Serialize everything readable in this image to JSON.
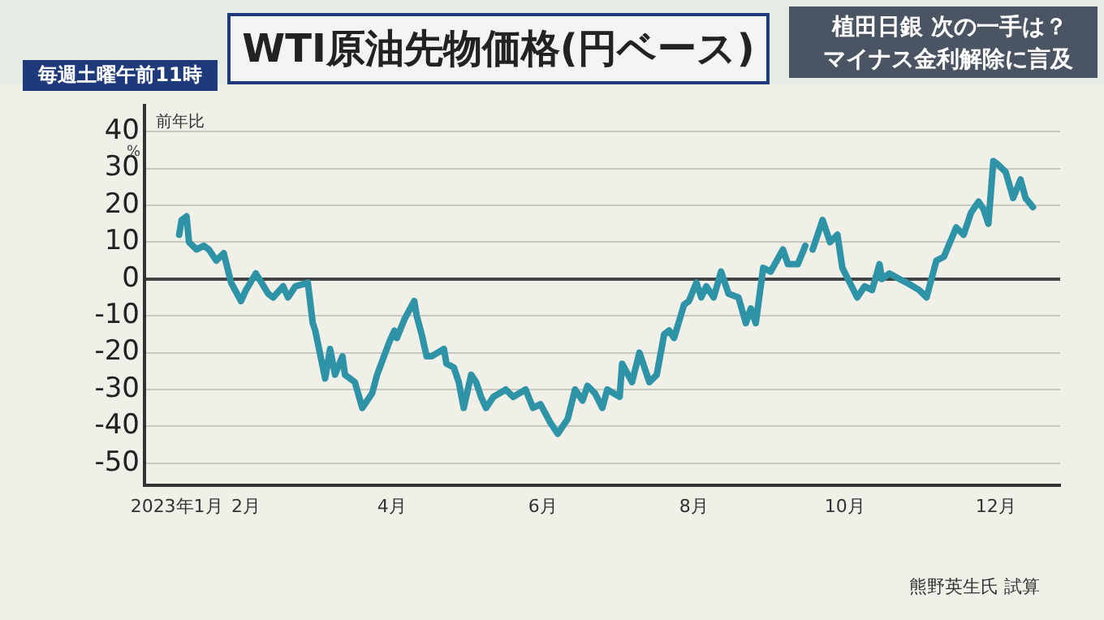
{
  "chart_data": {
    "type": "line",
    "title": "WTI原油先物価格(円ベース)",
    "ylabel": "前年比",
    "annotations": [
      "毎週土曜午前11時",
      "植田日銀 次の一手は？",
      "マイナス金利解除に言及",
      "%",
      "熊野英生氏 試算"
    ],
    "x": [
      "2023-01-05",
      "2023-01-06",
      "2023-01-08",
      "2023-01-09",
      "2023-01-12",
      "2023-01-15",
      "2023-01-17",
      "2023-01-20",
      "2023-01-23",
      "2023-01-26",
      "2023-01-30",
      "2023-02-01",
      "2023-02-05",
      "2023-02-10",
      "2023-02-12",
      "2023-02-16",
      "2023-02-18",
      "2023-02-21",
      "2023-02-26",
      "2023-02-28",
      "2023-03-01",
      "2023-03-05",
      "2023-03-07",
      "2023-03-09",
      "2023-03-12",
      "2023-03-13",
      "2023-03-17",
      "2023-03-20",
      "2023-03-24",
      "2023-03-26",
      "2023-03-31",
      "2023-04-02",
      "2023-04-03",
      "2023-04-06",
      "2023-04-10",
      "2023-04-11",
      "2023-04-13",
      "2023-04-15",
      "2023-04-17",
      "2023-04-22",
      "2023-04-23",
      "2023-04-26",
      "2023-04-28",
      "2023-04-30",
      "2023-05-03",
      "2023-05-05",
      "2023-05-07",
      "2023-05-09",
      "2023-05-12",
      "2023-05-17",
      "2023-05-20",
      "2023-05-25",
      "2023-05-28",
      "2023-05-31",
      "2023-06-04",
      "2023-06-07",
      "2023-06-11",
      "2023-06-14",
      "2023-06-17",
      "2023-06-19",
      "2023-06-22",
      "2023-06-25",
      "2023-06-27",
      "2023-07-02",
      "2023-07-03",
      "2023-07-07",
      "2023-07-10",
      "2023-07-14",
      "2023-07-17",
      "2023-07-20",
      "2023-07-22",
      "2023-07-24",
      "2023-07-28",
      "2023-07-30",
      "2023-08-02",
      "2023-08-04",
      "2023-08-06",
      "2023-08-09",
      "2023-08-12",
      "2023-08-15",
      "2023-08-19",
      "2023-08-22",
      "2023-08-24",
      "2023-08-26",
      "2023-08-29",
      "2023-09-01",
      "2023-09-06",
      "2023-09-08",
      "2023-09-12",
      "2023-09-15",
      "2023-09-17",
      "2023-09-18",
      "2023-09-22",
      "2023-09-25",
      "2023-09-28",
      "2023-09-30",
      "2023-10-06",
      "2023-10-09",
      "2023-10-12",
      "2023-10-15",
      "2023-10-16",
      "2023-10-19",
      "2023-10-23",
      "2023-10-26",
      "2023-10-31",
      "2023-11-03",
      "2023-11-07",
      "2023-11-10",
      "2023-11-15",
      "2023-11-18",
      "2023-11-21",
      "2023-11-24",
      "2023-11-26",
      "2023-11-28",
      "2023-11-30",
      "2023-12-02",
      "2023-12-05",
      "2023-12-08",
      "2023-12-11",
      "2023-12-13",
      "2023-12-16"
    ],
    "series": [
      {
        "color": "#2e93a6",
        "values": [
          12,
          16,
          17,
          10,
          8,
          9,
          8,
          5,
          7,
          -1,
          -6,
          -3,
          1.5,
          -4,
          -5,
          -2,
          -5,
          -2,
          -1,
          -12,
          -14,
          -27,
          -19,
          -26,
          -21,
          -26,
          -28,
          -35,
          -31,
          -26,
          -17,
          -14,
          -16,
          -11,
          -6,
          -10,
          -15,
          -21,
          -21,
          -19,
          -23,
          -24,
          -28,
          -35,
          -26,
          -28,
          -32,
          -35,
          -32,
          -30,
          -32,
          -30,
          -35,
          -34,
          -39,
          -42,
          -38,
          -30,
          -33,
          -29,
          -31,
          -35,
          -30,
          -32,
          -23,
          -28,
          -20,
          -28,
          -26,
          -15,
          -14,
          -16,
          -7,
          -6,
          -1,
          -5,
          -2,
          -5,
          2,
          -4,
          -5,
          -12,
          -8,
          -12,
          3,
          2,
          8,
          4,
          4,
          9,
          null,
          8,
          16,
          10,
          12,
          3,
          -5,
          -2,
          -3,
          4,
          0,
          1.5,
          0,
          -1,
          -3,
          -5,
          5,
          6,
          14,
          12,
          18,
          21,
          19,
          15,
          32,
          31,
          29,
          22,
          27,
          22,
          19.5
        ]
      }
    ],
    "xlim": [
      "2022-12-22",
      "2023-12-27"
    ],
    "xticks": [
      {
        "value": "2023-01-04",
        "label": "2023年1月"
      },
      {
        "value": "2023-02-01",
        "label": "2月"
      },
      {
        "value": "2023-04-01",
        "label": "4月"
      },
      {
        "value": "2023-06-01",
        "label": "6月"
      },
      {
        "value": "2023-08-01",
        "label": "8月"
      },
      {
        "value": "2023-10-01",
        "label": "10月"
      },
      {
        "value": "2023-12-01",
        "label": "12月"
      }
    ],
    "ylim": [
      -56,
      47
    ],
    "yticks": [
      -50,
      -40,
      -30,
      -20,
      -10,
      0,
      10,
      20,
      30,
      40
    ],
    "grid": "y",
    "legend": false,
    "marker": "none",
    "line_style": "solid"
  }
}
